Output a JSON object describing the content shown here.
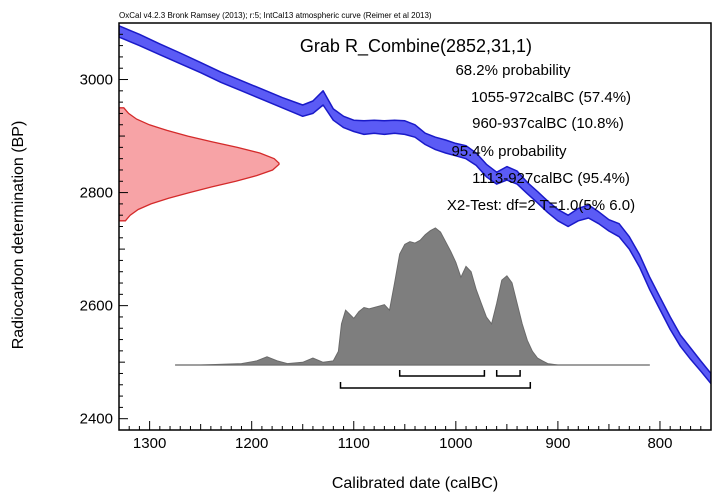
{
  "header": "OxCal v4.2.3 Bronk Ramsey (2013); r:5; IntCal13 atmospheric curve (Reimer et al 2013)",
  "chart_data": {
    "type": "area",
    "title": "Grab R_Combine(2852,31,1)",
    "xlabel": "Calibrated date (calBC)",
    "ylabel": "Radiocarbon determination (BP)",
    "xlim": [
      1330,
      750
    ],
    "ylim": [
      2380,
      3100
    ],
    "xticks": [
      1300,
      1200,
      1100,
      1000,
      900,
      800
    ],
    "yticks": [
      2400,
      2600,
      2800,
      3000
    ],
    "annotations": [
      "68.2% probability",
      "1055-972calBC (57.4%)",
      "960-937calBC (10.8%)",
      "95.4% probability",
      "1113-927calBC (95.4%)",
      "X2-Test: df=2 T=1.0(5% 6.0)"
    ],
    "calibration_curve": {
      "x": [
        1330,
        1310,
        1290,
        1270,
        1250,
        1230,
        1210,
        1190,
        1170,
        1150,
        1140,
        1130,
        1120,
        1110,
        1100,
        1090,
        1080,
        1070,
        1060,
        1050,
        1040,
        1030,
        1020,
        1010,
        1000,
        990,
        980,
        970,
        960,
        950,
        940,
        930,
        920,
        910,
        900,
        890,
        880,
        870,
        860,
        850,
        840,
        830,
        820,
        810,
        800,
        790,
        780,
        770,
        760,
        750
      ],
      "upper": [
        3095,
        3080,
        3063,
        3047,
        3030,
        3013,
        2998,
        2983,
        2968,
        2955,
        2962,
        2980,
        2948,
        2935,
        2928,
        2927,
        2928,
        2927,
        2928,
        2927,
        2920,
        2905,
        2898,
        2893,
        2887,
        2883,
        2870,
        2850,
        2836,
        2846,
        2838,
        2818,
        2802,
        2785,
        2770,
        2760,
        2772,
        2778,
        2766,
        2752,
        2745,
        2722,
        2690,
        2650,
        2615,
        2580,
        2548,
        2525,
        2502,
        2480
      ],
      "lower": [
        3075,
        3060,
        3044,
        3028,
        3012,
        2995,
        2980,
        2965,
        2950,
        2935,
        2940,
        2955,
        2928,
        2915,
        2908,
        2903,
        2905,
        2903,
        2905,
        2903,
        2898,
        2885,
        2876,
        2870,
        2865,
        2860,
        2848,
        2828,
        2815,
        2822,
        2815,
        2798,
        2782,
        2765,
        2750,
        2740,
        2750,
        2755,
        2745,
        2732,
        2722,
        2700,
        2668,
        2628,
        2593,
        2558,
        2528,
        2505,
        2484,
        2462
      ]
    },
    "radiocarbon_distribution": {
      "mean": 2852,
      "error": 31,
      "bp": [
        2750,
        2760,
        2770,
        2780,
        2790,
        2800,
        2810,
        2820,
        2830,
        2840,
        2850,
        2852,
        2860,
        2870,
        2880,
        2890,
        2900,
        2910,
        2920,
        2930,
        2940,
        2950
      ],
      "density": [
        0.04,
        0.07,
        0.12,
        0.2,
        0.31,
        0.44,
        0.58,
        0.73,
        0.86,
        0.96,
        1.0,
        1.0,
        0.97,
        0.88,
        0.74,
        0.58,
        0.43,
        0.3,
        0.19,
        0.11,
        0.06,
        0.03
      ]
    },
    "calibrated_distribution": {
      "calBC": [
        1275,
        1250,
        1210,
        1195,
        1185,
        1175,
        1165,
        1150,
        1140,
        1130,
        1120,
        1115,
        1112,
        1108,
        1100,
        1095,
        1090,
        1085,
        1080,
        1075,
        1070,
        1065,
        1060,
        1055,
        1050,
        1045,
        1040,
        1035,
        1030,
        1025,
        1020,
        1015,
        1010,
        1005,
        1000,
        995,
        990,
        985,
        980,
        975,
        970,
        965,
        960,
        955,
        950,
        945,
        940,
        935,
        930,
        925,
        920,
        915,
        910,
        900,
        880,
        850,
        810
      ],
      "density": [
        0,
        0,
        0.01,
        0.03,
        0.06,
        0.03,
        0.01,
        0.02,
        0.05,
        0.02,
        0.03,
        0.1,
        0.3,
        0.4,
        0.34,
        0.39,
        0.42,
        0.41,
        0.42,
        0.43,
        0.44,
        0.4,
        0.6,
        0.81,
        0.88,
        0.9,
        0.89,
        0.91,
        0.95,
        0.98,
        1.0,
        0.97,
        0.9,
        0.83,
        0.75,
        0.64,
        0.72,
        0.68,
        0.55,
        0.45,
        0.35,
        0.3,
        0.45,
        0.62,
        0.65,
        0.6,
        0.45,
        0.3,
        0.18,
        0.1,
        0.05,
        0.03,
        0.01,
        0,
        0,
        0,
        0
      ]
    },
    "ranges_68": [
      [
        1055,
        972
      ],
      [
        960,
        937
      ]
    ],
    "ranges_95": [
      [
        1113,
        927
      ]
    ],
    "colors": {
      "curve_fill": "#5b5bf5",
      "curve_line": "#1a1ac8",
      "rc_fill": "#f7a3a6",
      "rc_line": "#d42a2a",
      "posterior_fill": "#7e7e7e",
      "range_line": "#000000",
      "baseline": "#aaaaaa"
    },
    "grid": false
  }
}
